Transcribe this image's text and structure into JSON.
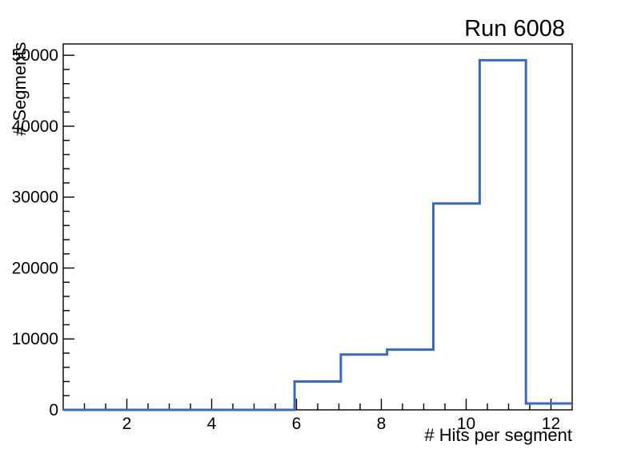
{
  "chart_data": {
    "type": "histogram",
    "title": "Run 6008",
    "xlabel": "# Hits per segment",
    "ylabel": "# Segments",
    "xlim": [
      0.5,
      12.5
    ],
    "ylim": [
      0,
      51600
    ],
    "x_major_ticks": [
      2,
      4,
      6,
      8,
      10,
      12
    ],
    "x_minor_step": 0.5,
    "y_major_ticks": [
      0,
      10000,
      20000,
      30000,
      40000,
      50000
    ],
    "y_minor_step": 2000,
    "bin_edges": [
      0.5,
      1.5909,
      2.6818,
      3.7727,
      4.8636,
      5.9545,
      7.0455,
      8.1364,
      9.2273,
      10.3182,
      11.4091,
      12.5
    ],
    "bin_values": [
      0,
      0,
      0,
      0,
      0,
      4000,
      7800,
      8500,
      29100,
      49300,
      900
    ],
    "grid": false,
    "legend": null,
    "line_color": "#3a67c1",
    "axis_color": "#000000",
    "background_color": "#ffffff"
  }
}
